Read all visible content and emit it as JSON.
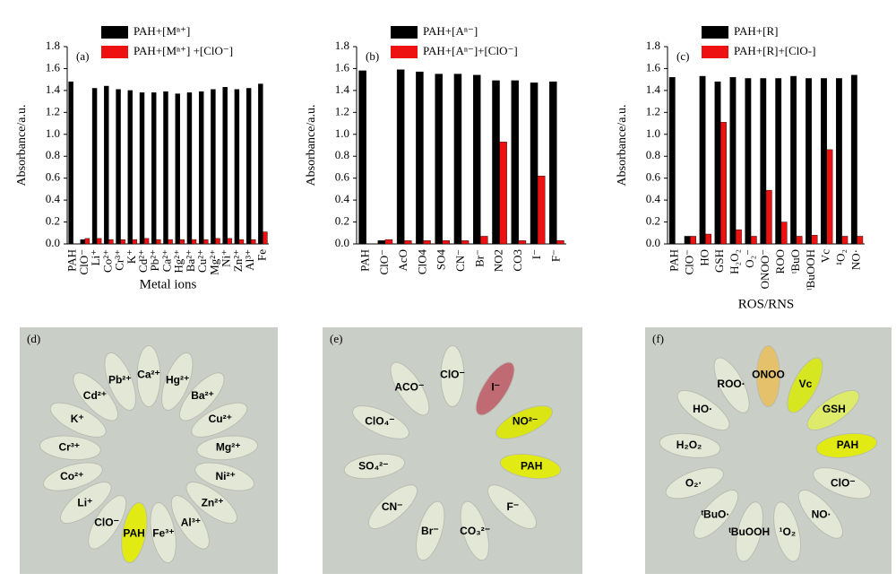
{
  "chart_data": [
    {
      "type": "bar",
      "annotation": "(a)",
      "xlabel": "Metal ions",
      "ylabel": "Absorbance/a.u.",
      "categories": [
        "PAH",
        "ClO⁻",
        "Li⁺",
        "Co²⁺",
        "Cr³⁺",
        "K⁺",
        "Cd²⁺",
        "Pb²⁺",
        "Ca²⁺",
        "Hg²⁺",
        "Ba²⁺",
        "Cu²⁺",
        "Mg²⁺",
        "Ni⁺",
        "Zn²⁺",
        "Al³⁺",
        "Fe"
      ],
      "highlight_categories": [
        1
      ],
      "highlight_color": "#e0001a",
      "series": [
        {
          "name": "PAH+[Mⁿ⁺]",
          "color": "#000000",
          "values": [
            1.48,
            0.04,
            1.42,
            1.44,
            1.41,
            1.4,
            1.38,
            1.38,
            1.39,
            1.37,
            1.38,
            1.39,
            1.41,
            1.43,
            1.41,
            1.42,
            1.46
          ]
        },
        {
          "name": "PAH+[Mⁿ⁺] +[ClO⁻]",
          "color": "#ee1111",
          "values": [
            null,
            0.05,
            0.05,
            0.04,
            0.04,
            0.04,
            0.05,
            0.04,
            0.04,
            0.04,
            0.04,
            0.04,
            0.05,
            0.05,
            0.04,
            0.04,
            0.11
          ]
        }
      ],
      "ylim": [
        0,
        1.8
      ],
      "yticks": [
        {
          "value": 0,
          "label": "0.0"
        },
        0.2,
        0.4,
        0.6,
        0.8,
        {
          "value": 1,
          "label": "1.0"
        },
        1.2,
        1.4,
        1.6,
        1.8
      ]
    },
    {
      "type": "bar",
      "annotation": "(b)",
      "ylabel": "Absorbance/a.u.",
      "categories": [
        "PAH",
        "ClO⁻",
        "AcO",
        "ClO4",
        "SO4",
        "CN⁻",
        "Br⁻",
        "NO2",
        "CO3",
        "I⁻",
        "F⁻"
      ],
      "highlight_categories": [
        1
      ],
      "highlight_color": "#e0001a",
      "series": [
        {
          "name": "PAH+[Aⁿ⁻]",
          "color": "#000000",
          "values": [
            1.58,
            0.03,
            1.59,
            1.57,
            1.55,
            1.55,
            1.54,
            1.49,
            1.49,
            1.47,
            1.48
          ]
        },
        {
          "name": "PAH+[Aⁿ⁻]+[ClO⁻]",
          "color": "#ee1111",
          "values": [
            null,
            0.04,
            0.03,
            0.03,
            0.03,
            0.03,
            0.07,
            0.93,
            0.03,
            0.62,
            0.03
          ]
        }
      ],
      "ylim": [
        0,
        1.8
      ],
      "yticks": [
        {
          "value": 0,
          "label": "0.0"
        },
        0.2,
        0.4,
        0.6,
        0.8,
        {
          "value": 1,
          "label": "1.0"
        },
        1.2,
        1.4,
        1.6,
        1.8
      ]
    },
    {
      "type": "bar",
      "annotation": "(c)",
      "xlabel": "ROS/RNS",
      "ylabel": "Absorbance/a.u.",
      "categories": [
        "PAH",
        "ClO⁻",
        "HO",
        "GSH",
        "H₂O₂",
        "O₂⁻",
        "ONOO⁻",
        "ROO",
        "ᵗBuO",
        "ᵗBuOOH",
        "Vc",
        "¹O₂",
        "NO·"
      ],
      "highlight_categories": [
        1
      ],
      "highlight_color": "#e0001a",
      "series": [
        {
          "name": "PAH+[R]",
          "color": "#000000",
          "values": [
            1.52,
            0.07,
            1.53,
            1.48,
            1.52,
            1.51,
            1.51,
            1.51,
            1.53,
            1.51,
            1.51,
            1.51,
            1.54
          ]
        },
        {
          "name": "PAH+[R]+[ClO-]",
          "color": "#ee1111",
          "values": [
            null,
            0.07,
            0.09,
            1.11,
            0.13,
            0.07,
            0.49,
            0.2,
            0.07,
            0.08,
            0.86,
            0.07,
            0.07
          ]
        }
      ],
      "ylim": [
        0,
        1.8
      ],
      "yticks": [
        {
          "value": 0,
          "label": "0.0"
        },
        0.2,
        0.4,
        0.6,
        0.8,
        {
          "value": 1,
          "label": "1.0"
        },
        1.2,
        1.4,
        1.6,
        1.8
      ]
    }
  ],
  "photos": [
    {
      "label": "(d)",
      "tubes": [
        "Ca²⁺",
        "Hg²⁺",
        "Ba²⁺",
        "Cu²⁺",
        "Mg²⁺",
        "Ni²⁺",
        "Zn²⁺",
        "Al³⁺",
        "Fe³⁺",
        "PAH",
        "ClO⁻",
        "Li⁺",
        "Co²⁺",
        "Cr³⁺",
        "K⁺",
        "Cd²⁺",
        "Pb²⁺"
      ],
      "tinted": [
        {
          "index": 9,
          "color": "#e4ee00"
        }
      ]
    },
    {
      "label": "(e)",
      "tubes": [
        "ClO⁻",
        "I⁻",
        "NO²⁻",
        "PAH",
        "F⁻",
        "CO₃²⁻",
        "Br⁻",
        "CN⁻",
        "SO₄²⁻",
        "ClO₄⁻",
        "ACO⁻"
      ],
      "tinted": [
        {
          "index": 1,
          "color": "#c0606a"
        },
        {
          "index": 2,
          "color": "#dde800"
        },
        {
          "index": 3,
          "color": "#e4ee00"
        }
      ]
    },
    {
      "label": "(f)",
      "tubes": [
        "ONOO",
        "Vc",
        "GSH",
        "PAH",
        "ClO⁻",
        "NO·",
        "¹O₂",
        "ᵗBuOOH",
        "ᵗBuO·",
        "O₂·",
        "H₂O₂",
        "HO·",
        "ROO·"
      ],
      "tinted": [
        {
          "index": 0,
          "color": "#e8c060"
        },
        {
          "index": 1,
          "color": "#d8ea10"
        },
        {
          "index": 2,
          "color": "#e0ee60"
        },
        {
          "index": 3,
          "color": "#e4ee00"
        }
      ]
    }
  ]
}
